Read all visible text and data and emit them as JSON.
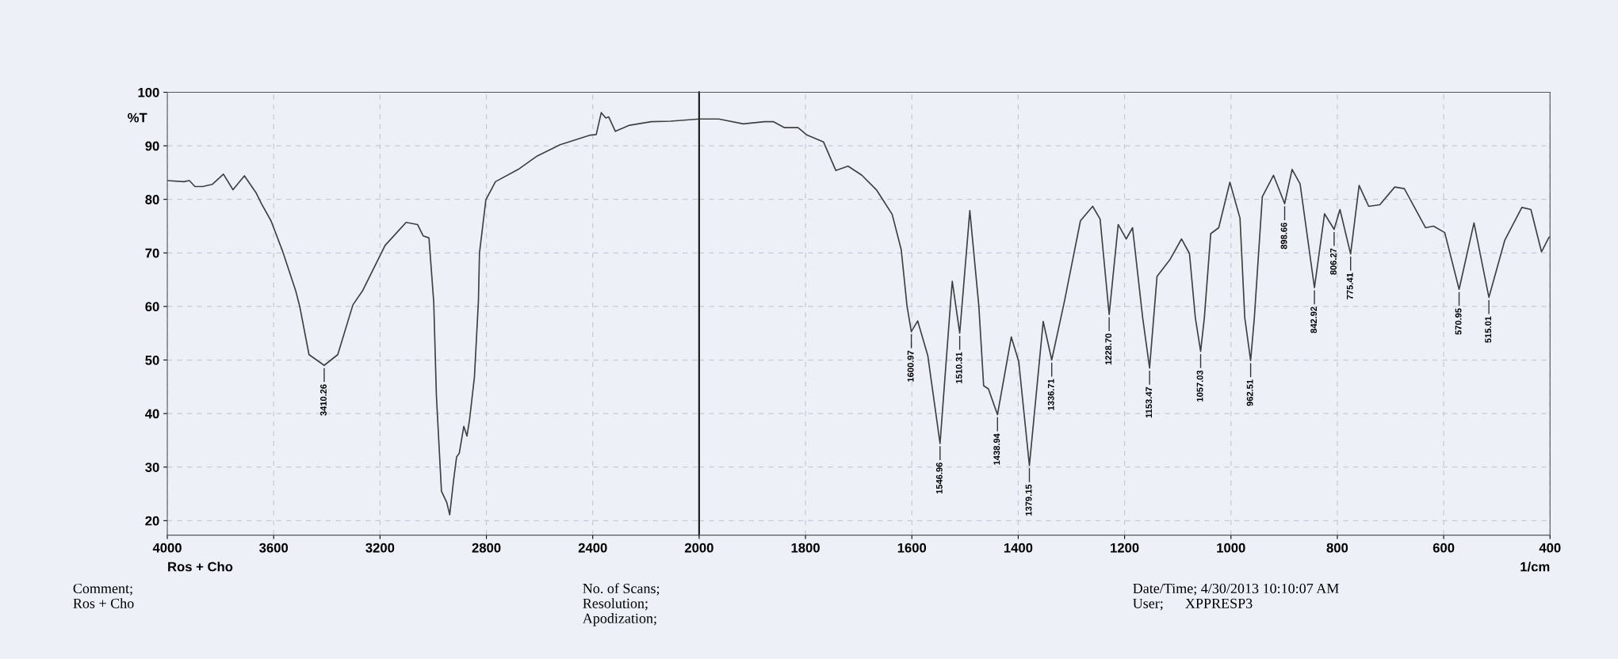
{
  "chart_data": [
    {
      "type": "line",
      "ylabel": "%T",
      "xlim": [
        4000,
        2000
      ],
      "xticks": [
        4000,
        3600,
        3200,
        2800,
        2400
      ],
      "ylim": [
        17.3,
        100
      ],
      "yticks": [
        20,
        30,
        40,
        50,
        60,
        70,
        80,
        90,
        100
      ],
      "grid": true,
      "line_style": "solid",
      "marker": "none",
      "series": [
        {
          "color": "#404040",
          "x": [
            4000,
            3938,
            3917,
            3896,
            3867,
            3831,
            3789,
            3753,
            3710,
            3667,
            3646,
            3610,
            3567,
            3517,
            3502,
            3467,
            3410,
            3359,
            3302,
            3266,
            3181,
            3102,
            3059,
            3038,
            3016,
            2998,
            2988,
            2969,
            2949,
            2938,
            2923,
            2912,
            2902,
            2885,
            2873,
            2863,
            2845,
            2830,
            2826,
            2802,
            2766,
            2680,
            2609,
            2523,
            2409,
            2387,
            2368,
            2351,
            2340,
            2315,
            2265,
            2180,
            2108,
            2000
          ],
          "values": [
            83.5,
            83.3,
            83.5,
            82.4,
            82.4,
            82.8,
            84.7,
            81.8,
            84.4,
            81.3,
            79.2,
            76,
            70.4,
            62.9,
            60,
            51,
            49,
            51,
            60.3,
            62.9,
            71.4,
            75.7,
            75.3,
            73.2,
            72.8,
            60.8,
            43.3,
            25.5,
            23.4,
            21.1,
            27.7,
            31.9,
            32.6,
            37.6,
            35.8,
            39,
            46.8,
            61,
            70,
            79.9,
            83.3,
            85.6,
            88.1,
            90.2,
            92,
            92.1,
            96.2,
            95.2,
            95.4,
            92.7,
            93.8,
            94.5,
            94.6,
            95
          ]
        }
      ],
      "annotations": [
        {
          "text": "3410.26",
          "x": 3410,
          "y": 49
        },
        "Ros + Cho",
        "Comment;\nRos + Cho",
        "No. of Scans;\nResolution;\nApodization;",
        "Date/Time; 4/30/2013 10:10:07 AM\nUser;      XPPRESP3"
      ]
    },
    {
      "type": "line",
      "xlabel": "1/cm",
      "xlim": [
        2000,
        400
      ],
      "xticks": [
        2000,
        1800,
        1600,
        1400,
        1200,
        1000,
        800,
        600,
        400
      ],
      "ylim": [
        17.3,
        100
      ],
      "yticks": [
        20,
        30,
        40,
        50,
        60,
        70,
        80,
        90,
        100
      ],
      "tick_labels": "x",
      "grid": true,
      "line_style": "solid",
      "marker": "none",
      "series": [
        {
          "color": "#404040",
          "x": [
            2000,
            1963,
            1917,
            1877,
            1860,
            1840,
            1814,
            1797,
            1766,
            1743,
            1720,
            1694,
            1666,
            1637,
            1620,
            1609,
            1601,
            1589,
            1570,
            1547,
            1527,
            1524,
            1510,
            1491,
            1474,
            1465,
            1456,
            1439,
            1413,
            1399,
            1379,
            1353,
            1337,
            1313,
            1283,
            1260,
            1246,
            1229,
            1212,
            1197,
            1185,
            1166,
            1153,
            1139,
            1115,
            1093,
            1078,
            1067,
            1057,
            1050,
            1038,
            1023,
            1002,
            983,
            974,
            963,
            956,
            941,
            920,
            899,
            885,
            870,
            843,
            824,
            806,
            795,
            775,
            759,
            741,
            720,
            692,
            674,
            634,
            619,
            598,
            571,
            543,
            515,
            485,
            453,
            436,
            416,
            402,
            400
          ],
          "values": [
            95,
            95,
            94.1,
            94.5,
            94.5,
            93.4,
            93.4,
            92,
            90.7,
            85.4,
            86.2,
            84.5,
            81.7,
            77.2,
            70.6,
            60,
            55.3,
            57.3,
            50.8,
            34.4,
            61,
            64.7,
            55,
            77.9,
            60,
            45.2,
            44.6,
            39.8,
            54.3,
            49.7,
            30.3,
            57.2,
            50,
            61,
            76,
            78.7,
            76.3,
            58.5,
            75.3,
            72.6,
            74.7,
            57.9,
            48.5,
            65.6,
            68.7,
            72.6,
            69.9,
            57.9,
            51.6,
            57.9,
            73.6,
            74.7,
            83.2,
            76.5,
            57.9,
            49.9,
            57.9,
            80.5,
            84.5,
            79.2,
            85.6,
            82.9,
            63.5,
            77.3,
            74.4,
            78.1,
            69.8,
            82.6,
            78.7,
            79,
            82.3,
            82,
            74.7,
            75,
            73.8,
            63.2,
            75.6,
            61.7,
            72.4,
            78.5,
            78.1,
            70.2,
            72.9,
            73
          ]
        }
      ],
      "annotations": [
        {
          "text": "1600.97",
          "x": 1601,
          "y": 55.3
        },
        {
          "text": "1546.96",
          "x": 1547,
          "y": 34.4
        },
        {
          "text": "1510.31",
          "x": 1510,
          "y": 55
        },
        {
          "text": "1438.94",
          "x": 1439,
          "y": 39.8
        },
        {
          "text": "1379.15",
          "x": 1379,
          "y": 30.3
        },
        {
          "text": "1336.71",
          "x": 1337,
          "y": 50
        },
        {
          "text": "1228.70",
          "x": 1229,
          "y": 58.5
        },
        {
          "text": "1153.47",
          "x": 1153,
          "y": 48.5
        },
        {
          "text": "1057.03",
          "x": 1057,
          "y": 51.6
        },
        {
          "text": "962.51",
          "x": 963,
          "y": 49.9
        },
        {
          "text": "898.66",
          "x": 899,
          "y": 79.2
        },
        {
          "text": "842.92",
          "x": 843,
          "y": 63.5
        },
        {
          "text": "806.27",
          "x": 806,
          "y": 74.4
        },
        {
          "text": "775.41",
          "x": 775,
          "y": 69.8
        },
        {
          "text": "570.95",
          "x": 571,
          "y": 63.2
        },
        {
          "text": "515.01",
          "x": 515,
          "y": 61.7
        }
      ]
    }
  ]
}
